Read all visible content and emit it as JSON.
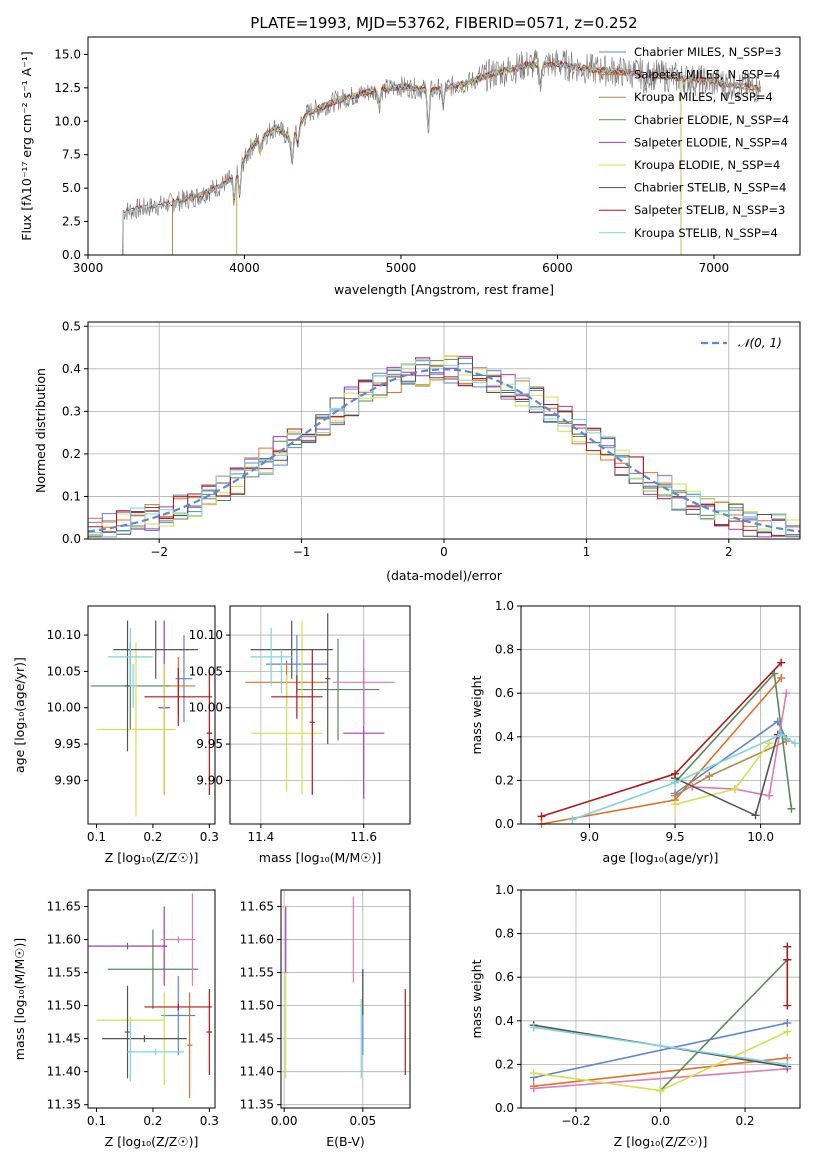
{
  "colors": {
    "chabrier_miles": "#5a86d6",
    "salpeter_miles": "#e0702a",
    "kroupa_miles": "#b58a4a",
    "chabrier_elodie": "#5a8a5e",
    "salpeter_elodie": "#a23db8",
    "kroupa_elodie": "#d4e04a",
    "chabrier_stelib": "#555555",
    "salpeter_stelib": "#b01818",
    "kroupa_stelib": "#7fd4e0",
    "pink": "#e07ab8",
    "normal": "#5a8ad6"
  },
  "chart_data": [
    {
      "id": "spectrum",
      "type": "line",
      "title": "PLATE=1993, MJD=53762, FIBERID=0571, z=0.252",
      "xlabel": "wavelength [Angstrom, rest frame]",
      "ylabel": "Flux [fλ10⁻¹⁷ erg cm⁻² s⁻¹ A⁻¹]",
      "xlim": [
        3000,
        7550
      ],
      "ylim": [
        0,
        16.3
      ],
      "xticks": [
        "3000",
        "4000",
        "5000",
        "6000",
        "7000"
      ],
      "yticks": [
        "0.0",
        "2.5",
        "5.0",
        "7.5",
        "10.0",
        "12.5",
        "15.0"
      ],
      "legend_position": "top-right",
      "legend": [
        "Chabrier MILES, N_SSP=3",
        "Salpeter MILES, N_SSP=4",
        "Kroupa MILES, N_SSP=4",
        "Chabrier ELODIE, N_SSP=4",
        "Salpeter ELODIE, N_SSP=4",
        "Kroupa ELODIE, N_SSP=4",
        "Chabrier STELIB, N_SSP=4",
        "Salpeter STELIB, N_SSP=3",
        "Kroupa STELIB, N_SSP=4"
      ],
      "continuum": {
        "x": [
          3200,
          3300,
          3500,
          3700,
          3850,
          3950,
          4050,
          4200,
          4300,
          4400,
          4600,
          4800,
          5000,
          5200,
          5400,
          5600,
          5800,
          6000,
          6200,
          6400,
          6600,
          6800,
          7000,
          7200,
          7300
        ],
        "y": [
          3.2,
          3.4,
          3.8,
          4.4,
          5.2,
          6.0,
          8.2,
          9.6,
          8.6,
          10.6,
          11.6,
          12.2,
          12.6,
          12.3,
          12.8,
          13.6,
          14.2,
          14.3,
          13.9,
          13.7,
          13.5,
          13.2,
          12.9,
          12.6,
          12.4
        ]
      }
    },
    {
      "id": "residuals",
      "type": "bar",
      "xlabel": "(data-model)/error",
      "ylabel": "Normed distribution",
      "xlim": [
        -2.5,
        2.5
      ],
      "ylim": [
        0,
        0.51
      ],
      "xticks": [
        "−2",
        "−1",
        "0",
        "1",
        "2"
      ],
      "yticks": [
        "0.0",
        "0.1",
        "0.2",
        "0.3",
        "0.4",
        "0.5"
      ],
      "legend_position": "top-right",
      "legend": [
        "𝒩(0, 1)"
      ],
      "bin_edges": [
        -2.5,
        -2.4,
        -2.3,
        -2.2,
        -2.1,
        -2.0,
        -1.9,
        -1.8,
        -1.7,
        -1.6,
        -1.5,
        -1.4,
        -1.3,
        -1.2,
        -1.1,
        -1.0,
        -0.9,
        -0.8,
        -0.7,
        -0.6,
        -0.5,
        -0.4,
        -0.3,
        -0.2,
        -0.1,
        0.0,
        0.1,
        0.2,
        0.3,
        0.4,
        0.5,
        0.6,
        0.7,
        0.8,
        0.9,
        1.0,
        1.1,
        1.2,
        1.3,
        1.4,
        1.5,
        1.6,
        1.7,
        1.8,
        1.9,
        2.0,
        2.1,
        2.2,
        2.3,
        2.4,
        2.5
      ]
    },
    {
      "id": "age-vs-Z",
      "type": "scatter",
      "xlabel": "Z [log₁₀(Z/Z☉)]",
      "ylabel": "age  [log₁₀(age/yr)]",
      "xlim": [
        0.085,
        0.31
      ],
      "ylim": [
        9.84,
        10.14
      ],
      "xticks": [
        "0.1",
        "0.2",
        "0.3"
      ],
      "xtick_values": [
        0.1,
        0.2,
        0.3
      ],
      "yticks": [
        "9.90",
        "9.95",
        "10.00",
        "10.05",
        "10.10"
      ],
      "ytick_values": [
        9.9,
        9.95,
        10.0,
        10.05,
        10.1
      ],
      "points": [
        {
          "c": "chabrier_miles",
          "x": 0.255,
          "xe": 0.015,
          "y": 10.04,
          "ye": 0.06
        },
        {
          "c": "salpeter_miles",
          "x": 0.245,
          "xe": 0.03,
          "y": 10.03,
          "ye": 0.04
        },
        {
          "c": "chabrier_elodie",
          "x": 0.16,
          "xe": 0.07,
          "y": 10.03,
          "ye": 0.06
        },
        {
          "c": "salpeter_elodie",
          "x": 0.22,
          "xe": 0.01,
          "y": 10.0,
          "ye": 0.12
        },
        {
          "c": "kroupa_elodie",
          "x": 0.17,
          "xe": 0.07,
          "y": 9.97,
          "ye": 0.12
        },
        {
          "c": "kroupa_elodie",
          "x": 0.22,
          "xe": 0.01,
          "y": 9.97,
          "ye": 0.09
        },
        {
          "c": "chabrier_stelib",
          "x": 0.205,
          "xe": 0.075,
          "y": 10.08,
          "ye": 0.04
        },
        {
          "c": "chabrier_stelib",
          "x": 0.155,
          "xe": 0.005,
          "y": 10.03,
          "ye": 0.09
        },
        {
          "c": "salpeter_stelib",
          "x": 0.245,
          "xe": 0.06,
          "y": 10.015,
          "ye": 0.04
        },
        {
          "c": "salpeter_stelib",
          "x": 0.3,
          "xe": 0.005,
          "y": 9.965,
          "ye": 0.085
        },
        {
          "c": "kroupa_stelib",
          "x": 0.16,
          "xe": 0.04,
          "y": 10.07,
          "ye": 0.04
        },
        {
          "c": "kroupa_stelib",
          "x": 0.165,
          "xe": 0.005,
          "y": 10.03,
          "ye": 0.03
        }
      ]
    },
    {
      "id": "age-vs-mass",
      "type": "scatter",
      "xlabel": "mass [log₁₀(M/M☉)]",
      "ylabel": "",
      "xlim": [
        11.34,
        11.69
      ],
      "ylim": [
        9.84,
        10.14
      ],
      "xticks": [
        "11.4",
        "11.6"
      ],
      "xtick_values": [
        11.4,
        11.6
      ],
      "yticks": [
        "9.90",
        "9.95",
        "10.00",
        "10.05",
        "10.10"
      ],
      "ytick_values": [
        9.9,
        9.95,
        10.0,
        10.05,
        10.1
      ],
      "points": [
        {
          "c": "chabrier_miles",
          "x": 11.47,
          "xe": 0.06,
          "y": 10.06,
          "ye": 0.04
        },
        {
          "c": "salpeter_miles",
          "x": 11.45,
          "xe": 0.08,
          "y": 10.035,
          "ye": 0.03
        },
        {
          "c": "chabrier_elodie",
          "x": 11.55,
          "xe": 0.08,
          "y": 10.025,
          "ye": 0.07
        },
        {
          "c": "salpeter_elodie",
          "x": 11.6,
          "xe": 0.04,
          "y": 9.965,
          "ye": 0.09
        },
        {
          "c": "pink",
          "x": 11.6,
          "xe": 0.06,
          "y": 10.035,
          "ye": 0.06
        },
        {
          "c": "kroupa_elodie",
          "x": 11.45,
          "xe": 0.07,
          "y": 9.965,
          "ye": 0.08
        },
        {
          "c": "kroupa_elodie",
          "x": 11.48,
          "xe": 0.005,
          "y": 10.0,
          "ye": 0.12
        },
        {
          "c": "chabrier_stelib",
          "x": 11.46,
          "xe": 0.08,
          "y": 10.08,
          "ye": 0.04
        },
        {
          "c": "chabrier_stelib",
          "x": 11.53,
          "xe": 0.005,
          "y": 10.04,
          "ye": 0.09
        },
        {
          "c": "salpeter_stelib",
          "x": 11.47,
          "xe": 0.05,
          "y": 10.015,
          "ye": 0.03
        },
        {
          "c": "salpeter_stelib",
          "x": 11.5,
          "xe": 0.005,
          "y": 9.98,
          "ye": 0.1
        },
        {
          "c": "kroupa_stelib",
          "x": 11.42,
          "xe": 0.04,
          "y": 10.07,
          "ye": 0.04
        },
        {
          "c": "kroupa_stelib",
          "x": 11.44,
          "xe": 0.005,
          "y": 10.05,
          "ye": 0.03
        }
      ]
    },
    {
      "id": "weight-vs-age",
      "type": "line",
      "xlabel": "age  [log₁₀(age/yr)]",
      "ylabel": "mass weight",
      "xlim": [
        8.6,
        10.23
      ],
      "ylim": [
        0,
        1
      ],
      "xticks": [
        "9.0",
        "9.5",
        "10.0"
      ],
      "xtick_values": [
        9.0,
        9.5,
        10.0
      ],
      "yticks": [
        "0.0",
        "0.2",
        "0.4",
        "0.6",
        "0.8",
        "1.0"
      ],
      "ytick_values": [
        0,
        0.2,
        0.4,
        0.6,
        0.8,
        1.0
      ],
      "series": [
        {
          "c": "chabrier_miles",
          "x": [
            9.5,
            10.1,
            10.15
          ],
          "y": [
            0.14,
            0.47,
            0.39
          ]
        },
        {
          "c": "salpeter_miles",
          "x": [
            8.72,
            9.5,
            10.12
          ],
          "y": [
            0.0,
            0.11,
            0.67
          ]
        },
        {
          "c": "kroupa_miles",
          "x": [
            9.5,
            9.7,
            10.15
          ],
          "y": [
            0.13,
            0.22,
            0.38
          ]
        },
        {
          "c": "chabrier_elodie",
          "x": [
            9.5,
            10.08,
            10.18
          ],
          "y": [
            0.19,
            0.69,
            0.07
          ]
        },
        {
          "c": "pink",
          "x": [
            9.6,
            9.85,
            10.05,
            10.15
          ],
          "y": [
            0.17,
            0.16,
            0.13,
            0.6
          ]
        },
        {
          "c": "kroupa_elodie",
          "x": [
            9.5,
            9.85,
            10.05
          ],
          "y": [
            0.09,
            0.16,
            0.37
          ]
        },
        {
          "c": "chabrier_stelib",
          "x": [
            9.5,
            9.97,
            10.1
          ],
          "y": [
            0.21,
            0.04,
            0.41
          ]
        },
        {
          "c": "salpeter_stelib",
          "x": [
            8.72,
            9.5,
            10.12
          ],
          "y": [
            0.035,
            0.23,
            0.74
          ]
        },
        {
          "c": "kroupa_stelib",
          "x": [
            8.9,
            9.5,
            10.12,
            10.2
          ],
          "y": [
            0.02,
            0.19,
            0.41,
            0.37
          ]
        }
      ]
    },
    {
      "id": "mass-vs-Z",
      "type": "scatter",
      "xlabel": "Z [log₁₀(Z/Z☉)]",
      "ylabel": "mass [log₁₀(M/M☉)]",
      "xlim": [
        0.085,
        0.31
      ],
      "ylim": [
        11.345,
        11.675
      ],
      "xticks": [
        "0.1",
        "0.2",
        "0.3"
      ],
      "xtick_values": [
        0.1,
        0.2,
        0.3
      ],
      "yticks": [
        "11.35",
        "11.40",
        "11.45",
        "11.50",
        "11.55",
        "11.60",
        "11.65"
      ],
      "ytick_values": [
        11.35,
        11.4,
        11.45,
        11.5,
        11.55,
        11.6,
        11.65
      ],
      "points": [
        {
          "c": "chabrier_miles",
          "x": 0.245,
          "xe": 0.03,
          "y": 11.485,
          "ye": 0.06
        },
        {
          "c": "salpeter_miles",
          "x": 0.265,
          "xe": 0.005,
          "y": 11.44,
          "ye": 0.08
        },
        {
          "c": "chabrier_elodie",
          "x": 0.2,
          "xe": 0.08,
          "y": 11.555,
          "ye": 0.06
        },
        {
          "c": "salpeter_elodie",
          "x": 0.155,
          "xe": 0.07,
          "y": 11.59,
          "ye": 0.005
        },
        {
          "c": "salpeter_elodie",
          "x": 0.22,
          "xe": 0.005,
          "y": 11.59,
          "ye": 0.06
        },
        {
          "c": "pink",
          "x": 0.245,
          "xe": 0.03,
          "y": 11.6,
          "ye": 0.005
        },
        {
          "c": "pink",
          "x": 0.27,
          "xe": 0.005,
          "y": 11.6,
          "ye": 0.07
        },
        {
          "c": "kroupa_elodie",
          "x": 0.16,
          "xe": 0.06,
          "y": 11.478,
          "ye": 0.005
        },
        {
          "c": "kroupa_elodie",
          "x": 0.22,
          "xe": 0.005,
          "y": 11.45,
          "ye": 0.07
        },
        {
          "c": "chabrier_stelib",
          "x": 0.185,
          "xe": 0.075,
          "y": 11.45,
          "ye": 0.005
        },
        {
          "c": "chabrier_stelib",
          "x": 0.155,
          "xe": 0.005,
          "y": 11.46,
          "ye": 0.07
        },
        {
          "c": "salpeter_stelib",
          "x": 0.245,
          "xe": 0.06,
          "y": 11.498,
          "ye": 0.005
        },
        {
          "c": "salpeter_stelib",
          "x": 0.3,
          "xe": 0.005,
          "y": 11.46,
          "ye": 0.065
        },
        {
          "c": "kroupa_stelib",
          "x": 0.205,
          "xe": 0.05,
          "y": 11.43,
          "ye": 0.005
        },
        {
          "c": "kroupa_stelib",
          "x": 0.16,
          "xe": 0.005,
          "y": 11.43,
          "ye": 0.045
        }
      ]
    },
    {
      "id": "mass-vs-ebv",
      "type": "scatter",
      "xlabel": "E(B-V)",
      "ylabel": "",
      "xlim": [
        -0.002,
        0.08
      ],
      "ylim": [
        11.345,
        11.675
      ],
      "xticks": [
        "0.00",
        "0.05"
      ],
      "xtick_values": [
        0.0,
        0.05
      ],
      "yticks": [
        "11.35",
        "11.40",
        "11.45",
        "11.50",
        "11.55",
        "11.60",
        "11.65"
      ],
      "ytick_values": [
        11.35,
        11.4,
        11.45,
        11.5,
        11.55,
        11.6,
        11.65
      ],
      "points": [
        {
          "c": "salpeter_elodie",
          "x": 0.001,
          "xe": 0,
          "y": 11.6,
          "ye": 0.05
        },
        {
          "c": "kroupa_elodie",
          "x": 0.001,
          "xe": 0,
          "y": 11.47,
          "ye": 0.08
        },
        {
          "c": "pink",
          "x": 0.044,
          "xe": 0,
          "y": 11.6,
          "ye": 0.065
        },
        {
          "c": "chabrier_miles",
          "x": 0.05,
          "xe": 0,
          "y": 11.49,
          "ye": 0.065
        },
        {
          "c": "chabrier_stelib",
          "x": 0.05,
          "xe": 0,
          "y": 11.52,
          "ye": 0.035
        },
        {
          "c": "kroupa_stelib",
          "x": 0.049,
          "xe": 0,
          "y": 11.45,
          "ye": 0.06
        },
        {
          "c": "salpeter_stelib",
          "x": 0.077,
          "xe": 0,
          "y": 11.46,
          "ye": 0.065
        }
      ]
    },
    {
      "id": "weight-vs-Z",
      "type": "line",
      "xlabel": "Z [log₁₀(Z/Z☉)]",
      "ylabel": "mass weight",
      "xlim": [
        -0.33,
        0.33
      ],
      "ylim": [
        0,
        1
      ],
      "xticks": [
        "−0.2",
        "0.0",
        "0.2"
      ],
      "xtick_values": [
        -0.2,
        0.0,
        0.2
      ],
      "yticks": [
        "0.0",
        "0.2",
        "0.4",
        "0.6",
        "0.8",
        "1.0"
      ],
      "ytick_values": [
        0,
        0.2,
        0.4,
        0.6,
        0.8,
        1.0
      ],
      "series": [
        {
          "c": "chabrier_miles",
          "x": [
            -0.3,
            0.3
          ],
          "y": [
            0.14,
            0.39
          ]
        },
        {
          "c": "salpeter_miles",
          "x": [
            -0.3,
            0.3
          ],
          "y": [
            0.1,
            0.23
          ]
        },
        {
          "c": "pink",
          "x": [
            -0.3,
            0.3
          ],
          "y": [
            0.09,
            0.18
          ]
        },
        {
          "c": "chabrier_elodie",
          "x": [
            0.0,
            0.3
          ],
          "y": [
            0.08,
            0.68
          ]
        },
        {
          "c": "kroupa_elodie",
          "x": [
            -0.3,
            0.0,
            0.3
          ],
          "y": [
            0.16,
            0.08,
            0.35
          ]
        },
        {
          "c": "chabrier_stelib",
          "x": [
            -0.3,
            0.3
          ],
          "y": [
            0.38,
            0.19
          ]
        },
        {
          "c": "salpeter_stelib",
          "x": [
            0.3,
            0.3,
            0.3
          ],
          "y": [
            0.74,
            0.47,
            0.68
          ]
        },
        {
          "c": "kroupa_stelib",
          "x": [
            -0.3,
            0.3
          ],
          "y": [
            0.37,
            0.2
          ]
        }
      ]
    }
  ]
}
